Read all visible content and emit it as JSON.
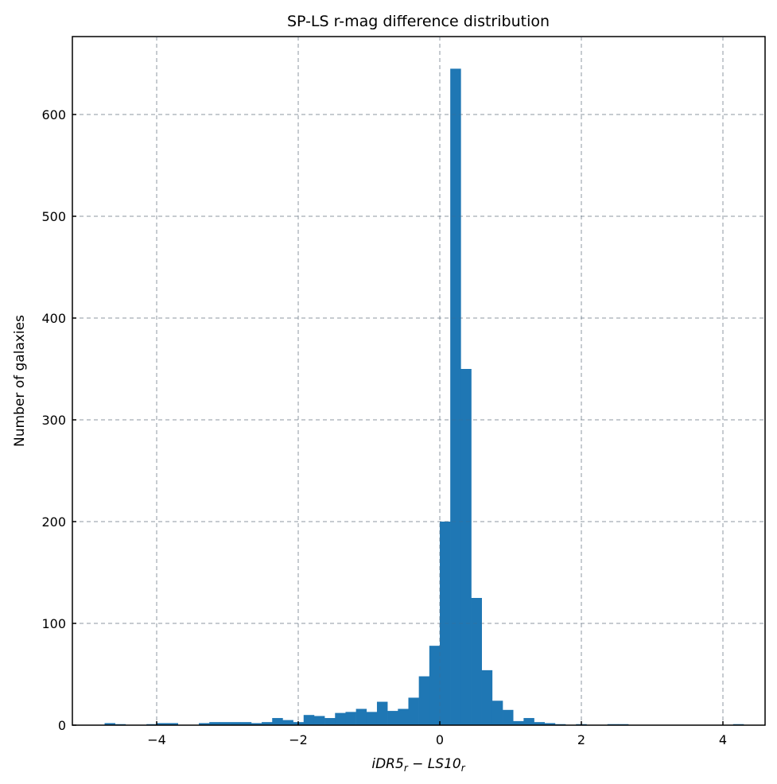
{
  "chart_data": {
    "type": "bar",
    "title": "SP-LS r-mag difference distribution",
    "xlabel_main": "iDR5",
    "xlabel_sub1": "r",
    "xlabel_mid": " − LS10",
    "xlabel_sub2": "r",
    "ylabel": "Number of galaxies",
    "xlim": [
      -5.2,
      4.6
    ],
    "ylim": [
      0,
      677
    ],
    "grid": true,
    "bar_color": "#1f77b4",
    "bin_start": -4.884,
    "bin_width": 0.148,
    "values": [
      0,
      2,
      1,
      0,
      0,
      1,
      2,
      2,
      0,
      0,
      2,
      3,
      3,
      3,
      3,
      2,
      3,
      7,
      5,
      3,
      10,
      9,
      7,
      12,
      13,
      16,
      13,
      23,
      14,
      16,
      27,
      48,
      78,
      200,
      645,
      350,
      125,
      54,
      24,
      15,
      4,
      7,
      3,
      2,
      1,
      0,
      1,
      0,
      0,
      1,
      1,
      0,
      0,
      0,
      0,
      0,
      0,
      0,
      0,
      0,
      0,
      1
    ],
    "xticks": [
      -4,
      -2,
      0,
      2,
      4
    ],
    "xtick_labels": [
      "−4",
      "−2",
      "0",
      "2",
      "4"
    ],
    "yticks": [
      0,
      100,
      200,
      300,
      400,
      500,
      600
    ],
    "ytick_labels": [
      "0",
      "100",
      "200",
      "300",
      "400",
      "500",
      "600"
    ]
  }
}
